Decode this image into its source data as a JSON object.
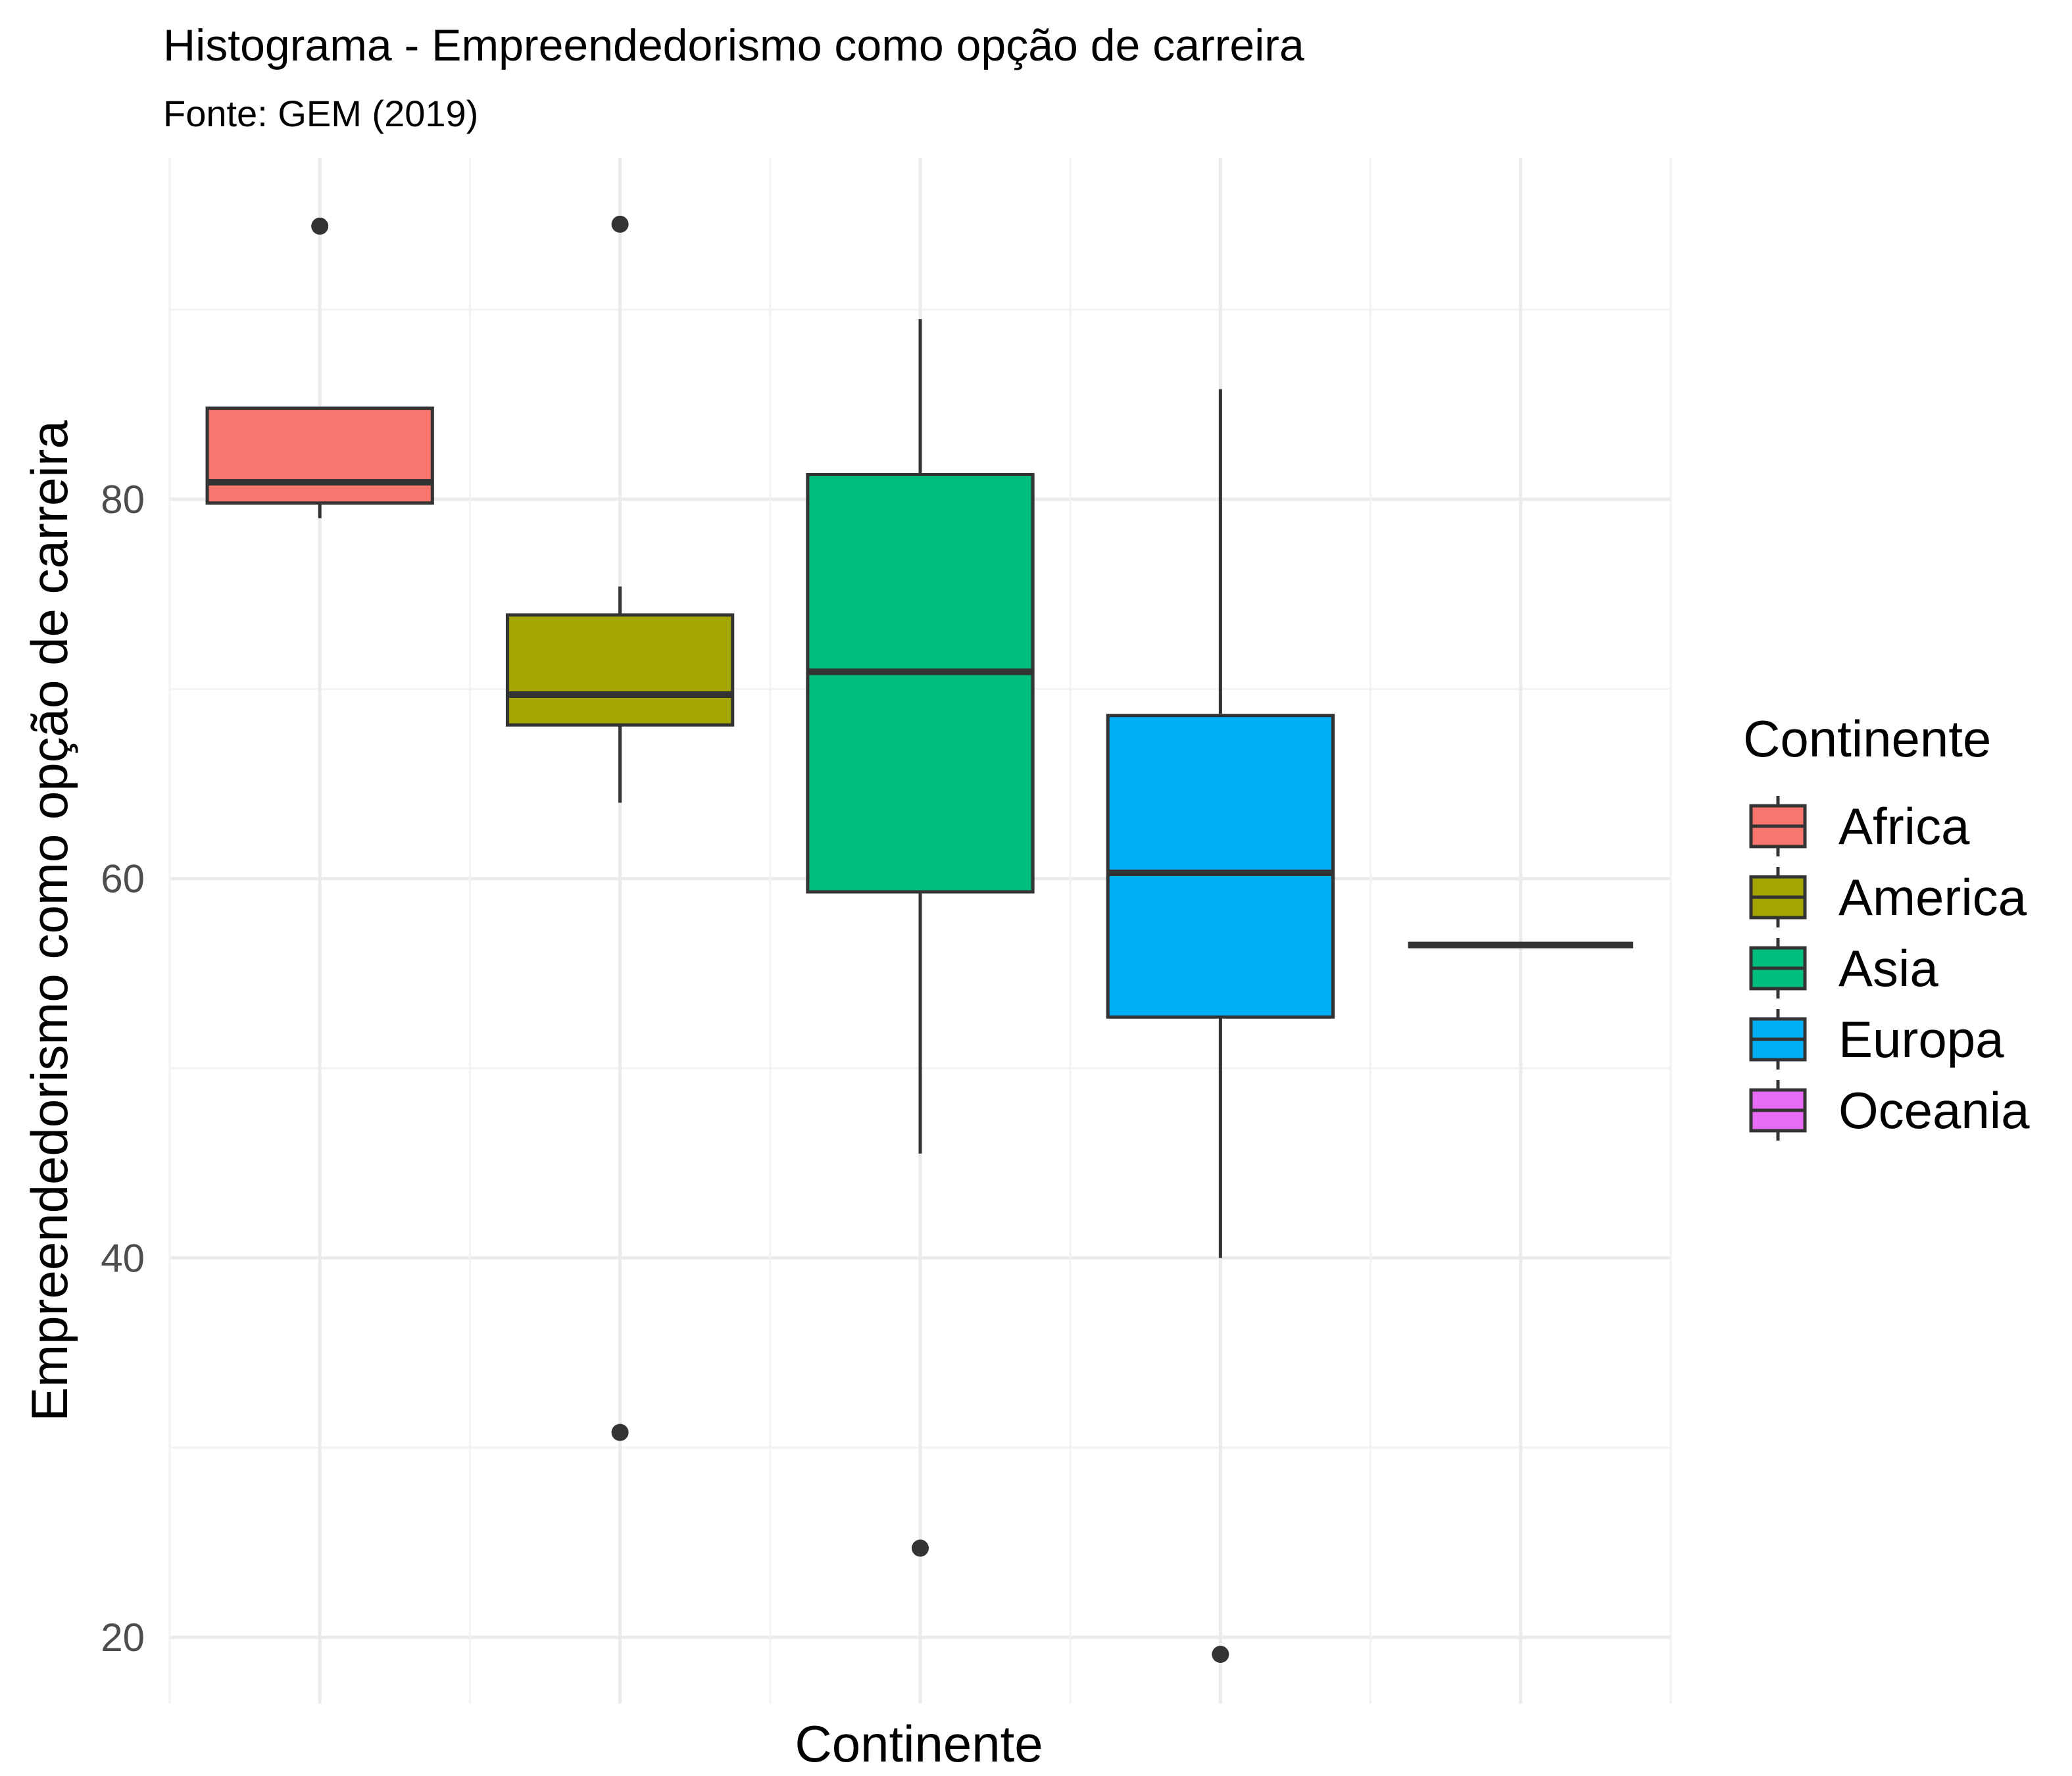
{
  "chart_data": {
    "type": "boxplot",
    "title": "Histograma - Empreendedorismo como opção de carreira",
    "subtitle": "Fonte: GEM (2019)",
    "xlabel": "Continente",
    "ylabel": "Empreendedorismo como opção de carreira",
    "ylim": [
      16.5,
      98
    ],
    "yticks": [
      20,
      40,
      60,
      80
    ],
    "grid": true,
    "legend": {
      "title": "Continente",
      "position": "right"
    },
    "series": [
      {
        "name": "Africa",
        "color": "#F8766D",
        "whisker_low": 79.0,
        "q1": 79.8,
        "median": 80.9,
        "q3": 84.8,
        "whisker_high": 84.8,
        "outliers": [
          94.4
        ]
      },
      {
        "name": "America",
        "color": "#A3A500",
        "whisker_low": 64.0,
        "q1": 68.1,
        "median": 69.7,
        "q3": 73.9,
        "whisker_high": 75.4,
        "outliers": [
          94.5,
          30.8
        ]
      },
      {
        "name": "Asia",
        "color": "#00BF7D",
        "whisker_low": 45.5,
        "q1": 59.3,
        "median": 70.9,
        "q3": 81.3,
        "whisker_high": 89.5,
        "outliers": [
          24.7
        ]
      },
      {
        "name": "Europa",
        "color": "#00B0F6",
        "whisker_low": 40.0,
        "q1": 52.7,
        "median": 60.3,
        "q3": 68.6,
        "whisker_high": 85.8,
        "outliers": [
          19.1
        ]
      },
      {
        "name": "Oceania",
        "color": "#E76BF3",
        "whisker_low": 56.5,
        "q1": 56.5,
        "median": 56.5,
        "q3": 56.5,
        "whisker_high": 56.5,
        "outliers": []
      }
    ]
  }
}
